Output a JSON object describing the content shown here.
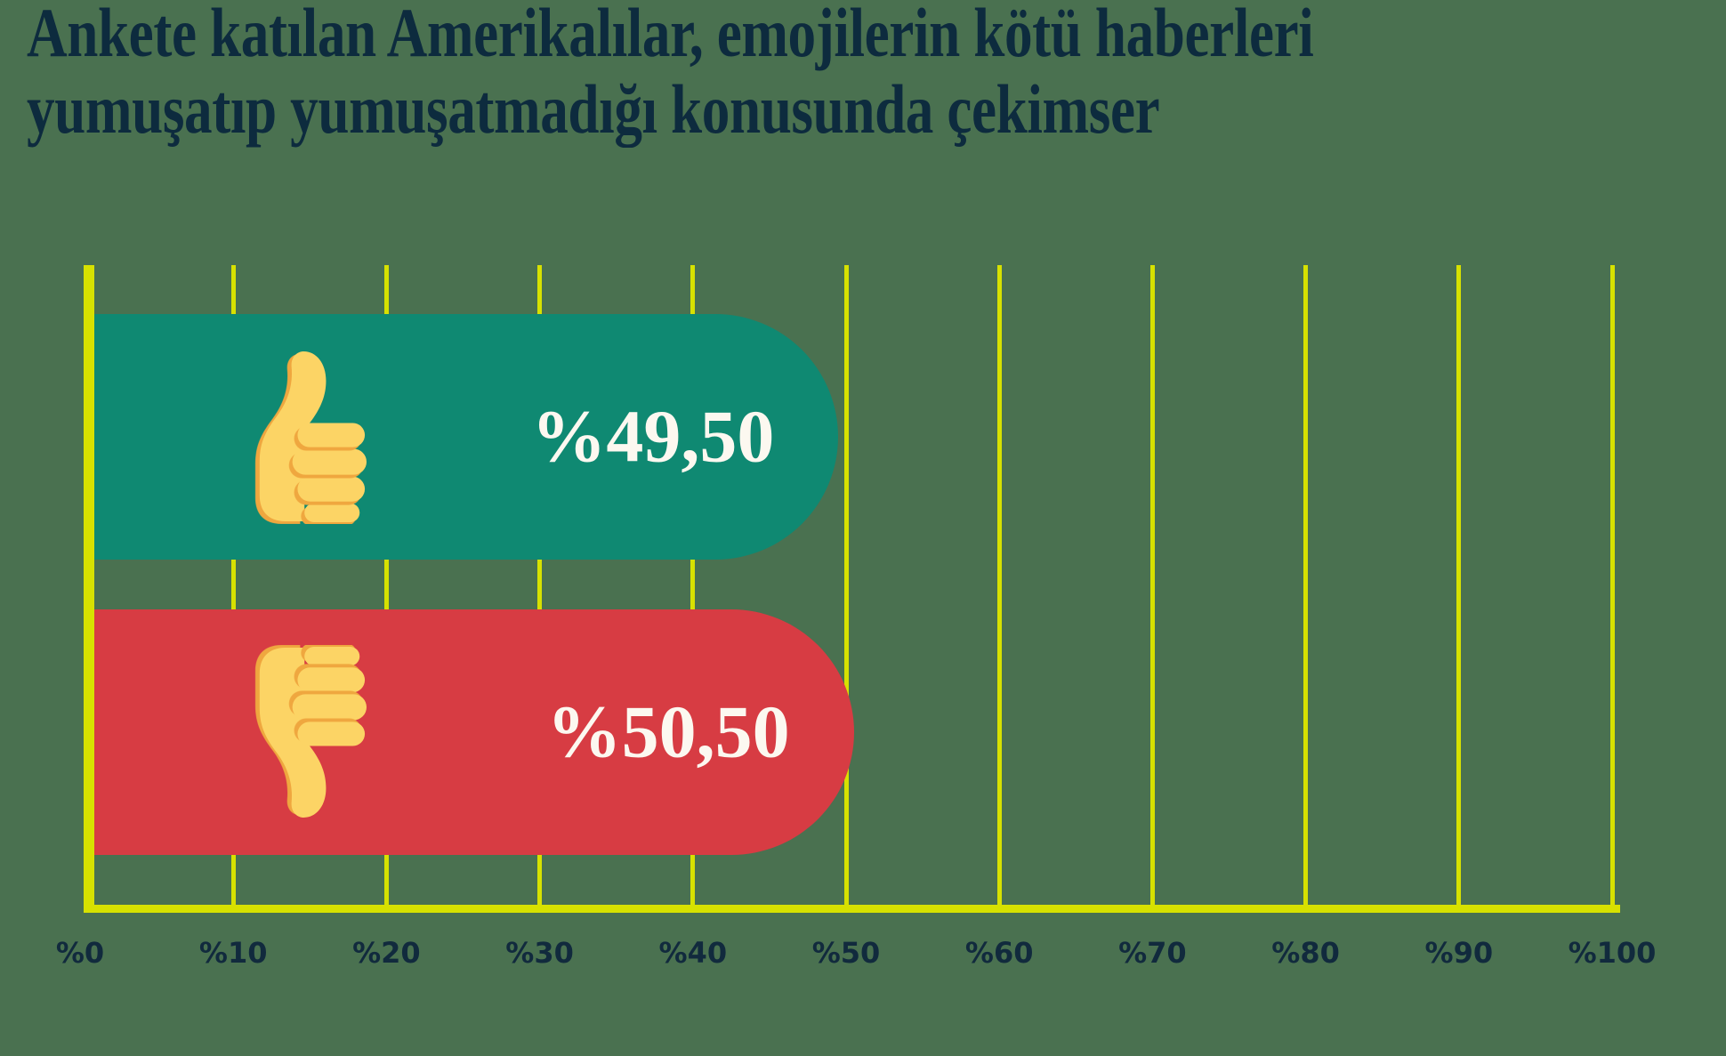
{
  "title": "Ankete katılan Amerikalılar, emojilerin kötü haberleri yumuşatıp yumuşatmadığı konusunda çekimser",
  "title_lines": [
    "Ankete katılan Amerikalılar, emojilerin kötü haberleri",
    "yumuşatıp yumuşatmadığı konusunda çekimser"
  ],
  "chart_data": {
    "type": "bar",
    "orientation": "horizontal",
    "title": "Ankete katılan Amerikalılar, emojilerin kötü haberleri yumuşatıp yumuşatmadığı konusunda çekimser",
    "categories": [
      "thumbs-up",
      "thumbs-down"
    ],
    "values": [
      49.5,
      50.5
    ],
    "value_labels": [
      "%49,50",
      "%50,50"
    ],
    "bar_colors": [
      "#0f8972",
      "#d73c43"
    ],
    "category_icons": [
      "thumbs-up-icon",
      "thumbs-down-icon"
    ],
    "x_ticks": [
      "%0",
      "%10",
      "%20",
      "%30",
      "%40",
      "%50",
      "%60",
      "%70",
      "%80",
      "%90",
      "%100"
    ],
    "xlim": [
      0,
      100
    ],
    "grid": true,
    "legend": false
  },
  "colors": {
    "background": "#4a7150",
    "axis_and_grid": "#d7e100",
    "bar_thumbs_up": "#0f8972",
    "bar_thumbs_down": "#d73c43",
    "title_text": "#0d2b3e",
    "tick_text": "#112a3d",
    "value_text": "#fcf8f0",
    "emoji_fill": "#fcd465",
    "emoji_shade": "#efa73f"
  }
}
